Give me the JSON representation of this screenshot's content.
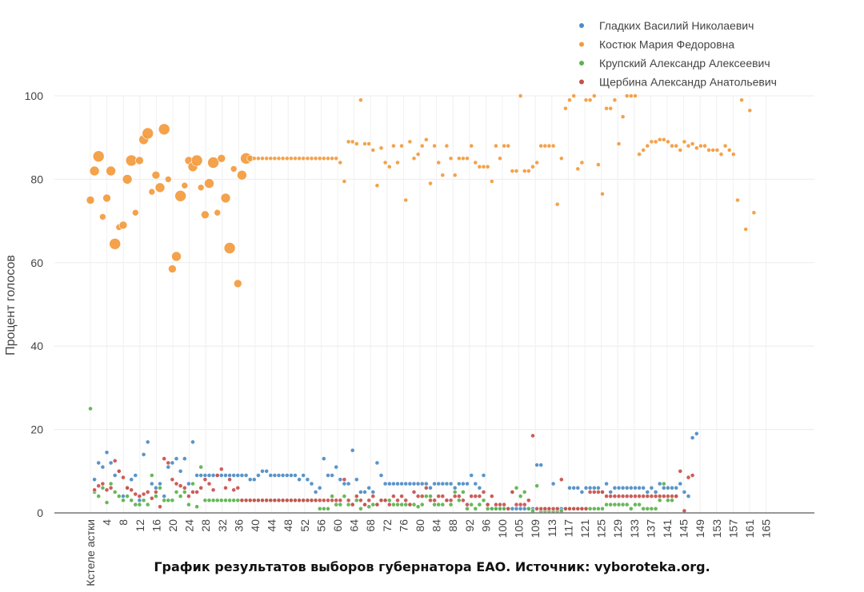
{
  "caption": "График результатов выборов губернатора ЕАО. Источник: vyboroteka.org.",
  "chart_data": {
    "type": "scatter",
    "ylabel": "Процент голосов",
    "xlabel": "",
    "ylim": [
      0,
      100
    ],
    "yticks": [
      0,
      20,
      40,
      60,
      80,
      100
    ],
    "grid": true,
    "legend_position": "top-right",
    "x_tick_labels": [
      "Кстеле астки",
      "4",
      "8",
      "12",
      "16",
      "20",
      "24",
      "28",
      "32",
      "36",
      "40",
      "44",
      "48",
      "52",
      "56",
      "60",
      "64",
      "68",
      "72",
      "76",
      "80",
      "84",
      "88",
      "92",
      "96",
      "100",
      "105",
      "109",
      "113",
      "117",
      "121",
      "125",
      "129",
      "133",
      "137",
      "141",
      "145",
      "149",
      "153",
      "157",
      "161",
      "165"
    ],
    "series": [
      {
        "name": "Гладких Василий Николаевич",
        "color": "#4c8cc4",
        "values": [
          null,
          8,
          12,
          11,
          14.5,
          12,
          9,
          10,
          4,
          6,
          8,
          9,
          3,
          14,
          17,
          7,
          6,
          7,
          4,
          11,
          12,
          13,
          10,
          13,
          7,
          17,
          9,
          9,
          9,
          9,
          9,
          9,
          9,
          9,
          9,
          9,
          9,
          9,
          9,
          8,
          8,
          9,
          10,
          10,
          9,
          9,
          9,
          9,
          9,
          9,
          9,
          8,
          9,
          8,
          7,
          5,
          6,
          13,
          9,
          9,
          11,
          8,
          7,
          7,
          15,
          8,
          5,
          5,
          6,
          5,
          12,
          9,
          7,
          7,
          7,
          7,
          7,
          7,
          7,
          7,
          7,
          7,
          7,
          6,
          7,
          7,
          7,
          7,
          7,
          6,
          7,
          7,
          7,
          9,
          7,
          6,
          9,
          2,
          1,
          1,
          1,
          1,
          1,
          1,
          1,
          1,
          1,
          1,
          1,
          11.5,
          11.5,
          1,
          1,
          7,
          1,
          1,
          1,
          6,
          6,
          6,
          5,
          6,
          6,
          6,
          6,
          5,
          7,
          5,
          6,
          6,
          6,
          6,
          6,
          6,
          6,
          6,
          5,
          6,
          5,
          7,
          6,
          6,
          6,
          6,
          7,
          5,
          4,
          18,
          19
        ]
      },
      {
        "name": "Костюк Мария Федоровна",
        "color": "#f39a3c",
        "values": [
          75,
          82,
          85.5,
          71,
          75.5,
          82,
          64.5,
          68.5,
          69,
          80,
          84.5,
          72,
          84.5,
          89.5,
          91,
          77,
          81,
          78,
          92,
          80,
          58.5,
          61.5,
          76,
          78.5,
          84.5,
          83,
          84.5,
          78,
          71.5,
          79,
          84,
          72,
          85,
          75.5,
          63.5,
          82.5,
          55,
          81,
          85,
          85,
          85,
          85,
          85,
          85,
          85,
          85,
          85,
          85,
          85,
          85,
          85,
          85,
          85,
          85,
          85,
          85,
          85,
          85,
          85,
          85,
          85,
          84,
          79.5,
          89,
          89,
          88.5,
          99,
          88.5,
          88.5,
          87,
          78.5,
          87.5,
          84,
          83,
          88,
          84,
          88,
          75,
          89,
          85,
          86,
          88,
          89.5,
          79,
          88,
          84,
          81,
          88,
          85,
          81,
          85,
          85,
          85,
          88,
          84,
          83,
          83,
          83,
          79.5,
          88,
          85,
          88,
          88,
          82,
          82,
          100,
          82,
          82,
          83,
          84,
          88,
          88,
          88,
          88,
          74,
          85,
          97,
          99,
          100,
          82.5,
          84,
          99,
          99,
          100,
          83.5,
          76.5,
          97,
          97,
          99,
          88.5,
          95,
          100,
          100,
          100,
          86,
          87,
          88,
          89,
          89,
          89.5,
          89.5,
          89,
          88,
          88,
          87,
          89,
          88,
          88.5,
          87.5,
          88,
          88,
          87,
          87,
          87,
          86,
          88,
          87,
          86,
          75,
          99,
          68,
          96.5,
          72
        ]
      },
      {
        "name": "Крупский Александр Алексеевич",
        "color": "#5ab34c",
        "values": [
          25,
          5,
          4,
          6,
          2.5,
          7,
          5,
          4,
          3,
          4,
          3,
          2,
          2,
          3,
          2,
          9,
          4,
          6,
          3,
          3,
          3,
          5,
          4,
          5,
          2,
          7,
          1.5,
          11,
          3,
          3,
          3,
          3,
          3,
          3,
          3,
          3,
          3,
          3,
          3,
          3,
          3,
          3,
          3,
          3,
          3,
          3,
          3,
          3,
          3,
          3,
          3,
          3,
          3,
          3,
          3,
          3,
          1,
          1,
          1,
          4,
          2,
          2,
          4,
          2,
          2,
          3,
          1,
          2,
          1.5,
          2,
          2,
          3,
          3,
          3,
          2,
          2,
          2,
          2,
          2,
          2,
          1.5,
          2,
          4,
          4,
          2,
          2,
          2,
          3,
          2,
          5,
          3,
          5,
          1,
          2,
          1,
          2,
          3,
          1,
          1,
          1,
          1,
          1,
          1,
          5,
          6,
          4,
          5,
          1,
          0.5,
          6.5,
          0.5,
          0.5,
          0.5,
          0.5,
          0.5,
          0.5,
          1,
          1,
          1,
          1,
          1,
          1,
          1,
          1,
          1,
          1,
          2,
          2,
          2,
          2,
          2,
          2,
          1,
          2,
          2,
          1,
          1,
          1,
          1,
          3,
          7,
          3,
          3,
          4
        ]
      },
      {
        "name": "Щербина Александр Анатольевич",
        "color": "#c8504c",
        "values": [
          null,
          5.5,
          6.5,
          7,
          5.5,
          6,
          12.5,
          10,
          8.5,
          6,
          5.5,
          4.5,
          4,
          4.5,
          5,
          3.5,
          5,
          1.5,
          13,
          12,
          8,
          7,
          6.5,
          6,
          4,
          5,
          5,
          6,
          8,
          7,
          5.5,
          9,
          10.5,
          6,
          8,
          5.5,
          6,
          3,
          3,
          3,
          3,
          3,
          3,
          3,
          3,
          3,
          3,
          3,
          3,
          3,
          3,
          3,
          3,
          3,
          3,
          3,
          3,
          3,
          3,
          3,
          3,
          3,
          8,
          3,
          2,
          4,
          3,
          2,
          3,
          4,
          2,
          3,
          3,
          2,
          4,
          3,
          4,
          3,
          2,
          5,
          4,
          4,
          6,
          3,
          3,
          4,
          4,
          3,
          3,
          4,
          4,
          3,
          2,
          4,
          4,
          4,
          5,
          2,
          4,
          2,
          2,
          2,
          1,
          5,
          2,
          2,
          2,
          3,
          18.5,
          1,
          1,
          1,
          1,
          1,
          1,
          8,
          1,
          1,
          1,
          1,
          1,
          1,
          5,
          5,
          5,
          5,
          4,
          4,
          4,
          4,
          4,
          4,
          4,
          4,
          4,
          4,
          4,
          4,
          4,
          4,
          4,
          4,
          4,
          4,
          10,
          0.5,
          8.5,
          9
        ]
      }
    ]
  }
}
